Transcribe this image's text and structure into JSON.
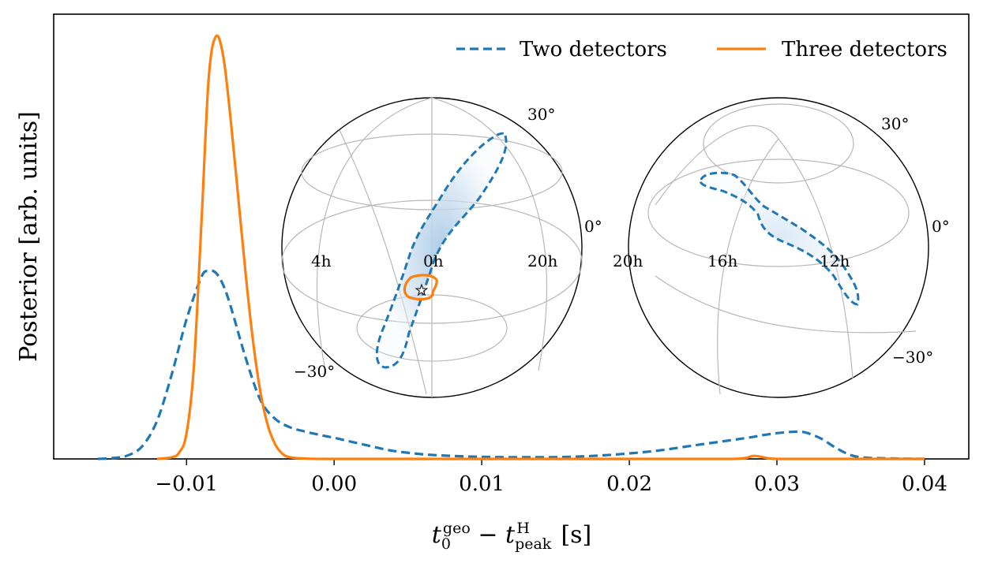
{
  "chart_data": {
    "type": "line",
    "xlabel": "t_0^geo − t_peak^H [s]",
    "xlabel_parts": {
      "t": "t",
      "sub0": "0",
      "sup_geo": "geo",
      "minus": "−",
      "t2": "t",
      "sub_peak": "peak",
      "sup_H": "H",
      "unit": "[s]"
    },
    "ylabel": "Posterior [arb. units]",
    "xlim": [
      -0.019,
      0.043
    ],
    "ylim": [
      0,
      1.0
    ],
    "xticks": [
      -0.01,
      0.0,
      0.01,
      0.02,
      0.03,
      0.04
    ],
    "xtick_labels": [
      "−0.01",
      "0.00",
      "0.01",
      "0.02",
      "0.03",
      "0.04"
    ],
    "legend_position": "top-right",
    "colors": {
      "two": "#1f77b4",
      "three": "#ff7f0e",
      "grid": "#b8b8b8"
    },
    "series": [
      {
        "name": "Two detectors",
        "style": "dashed",
        "color": "#1f77b4",
        "x": [
          -0.016,
          -0.015,
          -0.014,
          -0.013,
          -0.012,
          -0.011,
          -0.01,
          -0.009,
          -0.0085,
          -0.008,
          -0.0075,
          -0.007,
          -0.006,
          -0.005,
          -0.004,
          -0.003,
          -0.002,
          -0.001,
          0.0,
          0.001,
          0.002,
          0.003,
          0.004,
          0.006,
          0.008,
          0.01,
          0.012,
          0.014,
          0.016,
          0.018,
          0.02,
          0.022,
          0.024,
          0.026,
          0.028,
          0.029,
          0.03,
          0.031,
          0.0315,
          0.032,
          0.033,
          0.034,
          0.035,
          0.036,
          0.038,
          0.04
        ],
        "y": [
          0.0,
          0.002,
          0.008,
          0.03,
          0.09,
          0.2,
          0.33,
          0.43,
          0.445,
          0.44,
          0.41,
          0.36,
          0.24,
          0.14,
          0.095,
          0.075,
          0.065,
          0.057,
          0.05,
          0.042,
          0.034,
          0.026,
          0.019,
          0.011,
          0.007,
          0.005,
          0.004,
          0.004,
          0.005,
          0.008,
          0.013,
          0.02,
          0.03,
          0.04,
          0.05,
          0.056,
          0.061,
          0.064,
          0.064,
          0.062,
          0.048,
          0.026,
          0.009,
          0.003,
          0.001,
          0.0
        ]
      },
      {
        "name": "Three detectors",
        "style": "solid",
        "color": "#ff7f0e",
        "x": [
          -0.012,
          -0.011,
          -0.0105,
          -0.01,
          -0.0095,
          -0.009,
          -0.0085,
          -0.008,
          -0.0075,
          -0.007,
          -0.0065,
          -0.006,
          -0.0055,
          -0.005,
          -0.0045,
          -0.004,
          -0.0035,
          -0.003,
          -0.002,
          0.0,
          0.01,
          0.02,
          0.027,
          0.0285,
          0.03,
          0.035,
          0.04
        ],
        "y": [
          0.0,
          0.004,
          0.015,
          0.06,
          0.22,
          0.55,
          0.9,
          1.0,
          0.95,
          0.8,
          0.62,
          0.44,
          0.28,
          0.16,
          0.08,
          0.035,
          0.012,
          0.004,
          0.001,
          0.0,
          0.0,
          0.0,
          0.0,
          0.007,
          0.0,
          0.0,
          0.0
        ]
      }
    ],
    "insets": [
      {
        "name": "two-detector-skymap",
        "lat_labels": [
          "30°",
          "0°",
          "−30°"
        ],
        "ra_labels": [
          "4h",
          "0h",
          "20h"
        ]
      },
      {
        "name": "three-detector-skymap",
        "lat_labels": [
          "30°",
          "0°",
          "−30°"
        ],
        "ra_labels": [
          "20h",
          "16h",
          "12h"
        ]
      }
    ]
  }
}
